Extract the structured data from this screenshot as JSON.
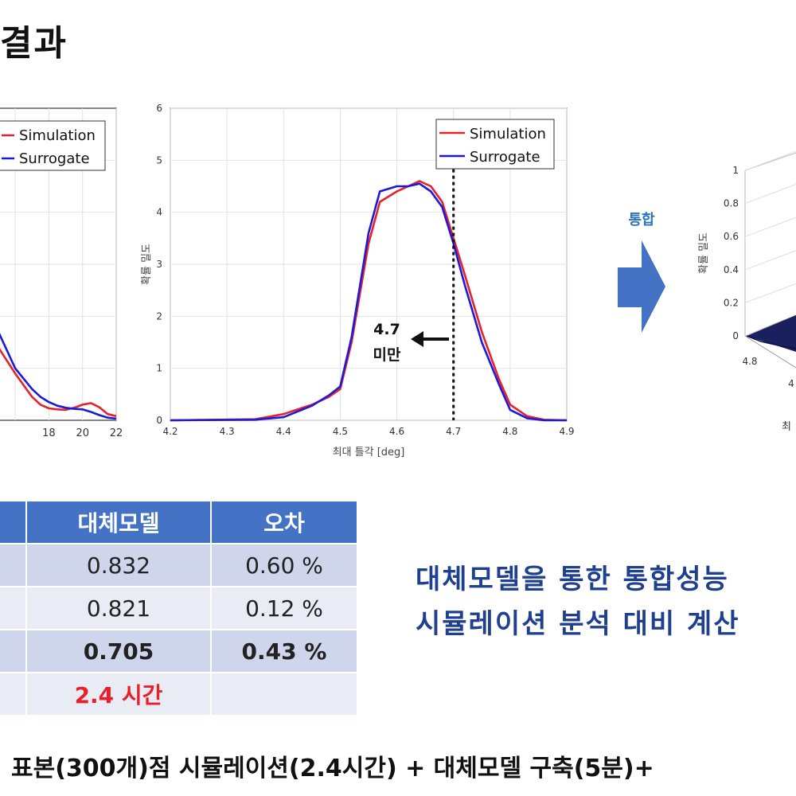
{
  "heading": "결과",
  "arrow_label": "통합",
  "chart_data": [
    {
      "type": "line",
      "panel": "left-cropped",
      "title": "",
      "xlabel": "",
      "ylabel": "",
      "xlim": [
        15,
        22
      ],
      "ylim": [
        0,
        6
      ],
      "xticks": [
        "18",
        "20",
        "22"
      ],
      "grid": true,
      "legend": {
        "position": "top-right",
        "entries": [
          "Simulation",
          "Surrogate"
        ]
      },
      "series": [
        {
          "name": "Simulation",
          "color": "#E8202A",
          "x": [
            15,
            16,
            17,
            17.5,
            18,
            18.5,
            19,
            19.5,
            20,
            20.5,
            21,
            21.5,
            22
          ],
          "y": [
            1.4,
            0.9,
            0.45,
            0.3,
            0.23,
            0.21,
            0.2,
            0.24,
            0.3,
            0.33,
            0.25,
            0.12,
            0.08
          ]
        },
        {
          "name": "Surrogate",
          "color": "#1A1ADB",
          "x": [
            15,
            16,
            17,
            17.5,
            18,
            18.5,
            19,
            19.5,
            20,
            20.5,
            21,
            21.5,
            22
          ],
          "y": [
            1.7,
            1.0,
            0.6,
            0.45,
            0.35,
            0.28,
            0.24,
            0.22,
            0.21,
            0.16,
            0.1,
            0.05,
            0.03
          ]
        }
      ]
    },
    {
      "type": "line",
      "panel": "middle",
      "title": "",
      "xlabel": "최대 틀각 [deg]",
      "ylabel": "확률 밀도",
      "xlim": [
        4.2,
        4.9
      ],
      "ylim": [
        0,
        6
      ],
      "xticks": [
        "4.2",
        "4.3",
        "4.4",
        "4.5",
        "4.6",
        "4.7",
        "4.8",
        "4.9"
      ],
      "yticks": [
        "0",
        "1",
        "2",
        "3",
        "4",
        "5",
        "6"
      ],
      "grid": true,
      "legend": {
        "position": "top-right",
        "entries": [
          "Simulation",
          "Surrogate"
        ]
      },
      "threshold": {
        "x": 4.7,
        "label_lines": [
          "4.7",
          "미만"
        ]
      },
      "series": [
        {
          "name": "Simulation",
          "color": "#E8202A",
          "x": [
            4.2,
            4.35,
            4.4,
            4.45,
            4.48,
            4.5,
            4.52,
            4.55,
            4.57,
            4.6,
            4.62,
            4.64,
            4.66,
            4.68,
            4.7,
            4.72,
            4.75,
            4.78,
            4.8,
            4.83,
            4.86,
            4.9
          ],
          "y": [
            0,
            0.02,
            0.12,
            0.3,
            0.45,
            0.6,
            1.5,
            3.4,
            4.2,
            4.4,
            4.5,
            4.6,
            4.5,
            4.2,
            3.5,
            2.8,
            1.7,
            0.8,
            0.3,
            0.08,
            0.01,
            0
          ]
        },
        {
          "name": "Surrogate",
          "color": "#1A1ADB",
          "x": [
            4.2,
            4.35,
            4.4,
            4.45,
            4.48,
            4.5,
            4.52,
            4.55,
            4.57,
            4.6,
            4.62,
            4.64,
            4.66,
            4.68,
            4.7,
            4.72,
            4.75,
            4.78,
            4.8,
            4.83,
            4.86,
            4.9
          ],
          "y": [
            0,
            0.01,
            0.06,
            0.28,
            0.48,
            0.65,
            1.6,
            3.6,
            4.4,
            4.5,
            4.5,
            4.55,
            4.4,
            4.1,
            3.4,
            2.6,
            1.5,
            0.7,
            0.2,
            0.04,
            0,
            0
          ]
        }
      ]
    },
    {
      "type": "surface",
      "panel": "right-3d-cropped",
      "title": "",
      "ylabel": "확률 밀도",
      "zticks": [
        "0",
        "0.2",
        "0.4",
        "0.6",
        "0.8",
        "1"
      ],
      "xticks": [
        "4.8",
        "4"
      ],
      "xlabel_partial": "최"
    }
  ],
  "table": {
    "headers": [
      "대체모델",
      "오차"
    ],
    "rows": [
      {
        "model": "0.832",
        "error": "0.60 %"
      },
      {
        "model": "0.821",
        "error": "0.12 %"
      },
      {
        "model": "0.705",
        "error": "0.43 %"
      },
      {
        "model": "2.4 시간",
        "error": ""
      }
    ]
  },
  "summary": {
    "line1": "대체모델을 통한 통합성능",
    "line2": "시뮬레이션 분석 대비 계산"
  },
  "bottom_text": "표본(300개)점 시뮬레이션(2.4시간) + 대체모델 구축(5분)+"
}
